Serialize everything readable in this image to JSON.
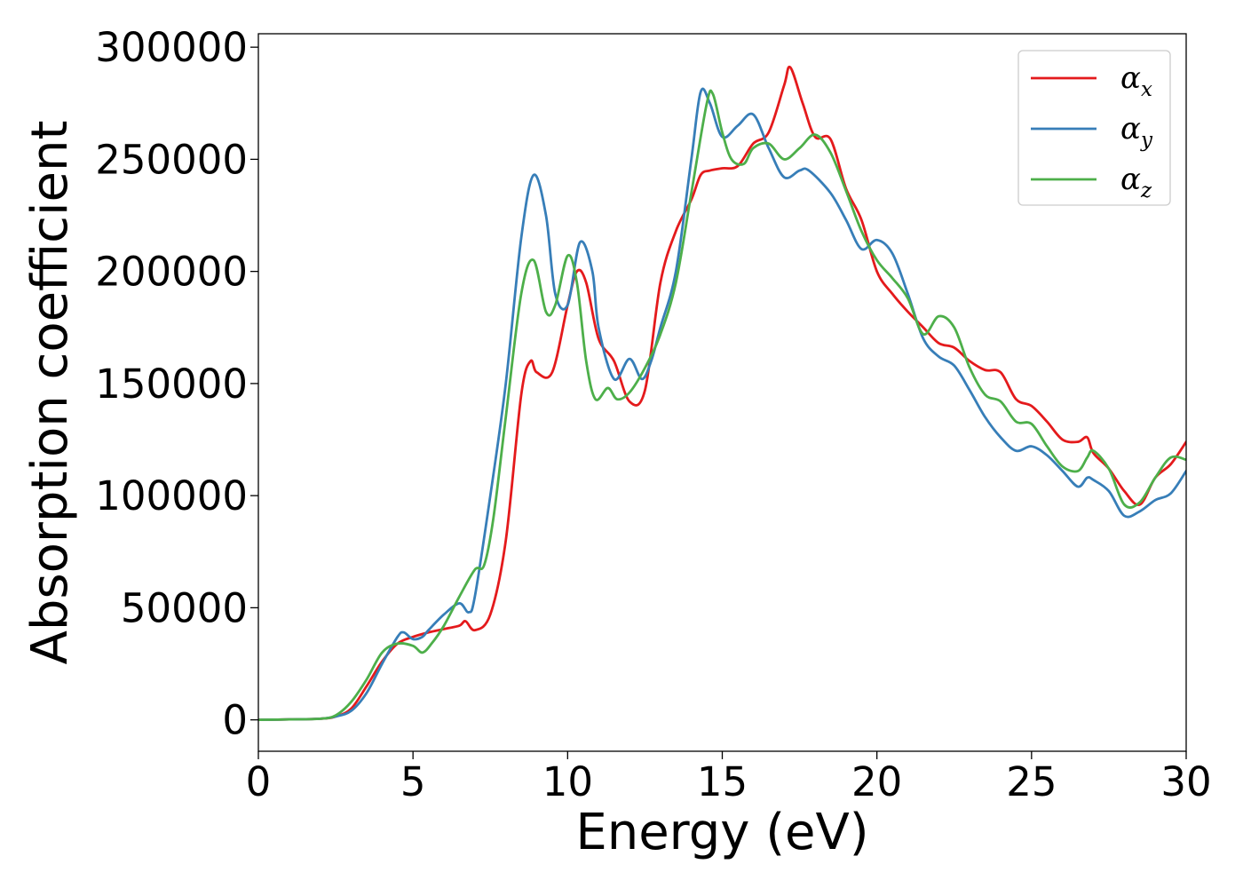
{
  "chart_data": {
    "type": "line",
    "title": "",
    "xlabel": "Energy (eV)",
    "ylabel": "Absorption coefficient",
    "xlim": [
      0,
      30
    ],
    "ylim": [
      -14000,
      306000
    ],
    "xticks": [
      0,
      5,
      10,
      15,
      20,
      25,
      30
    ],
    "yticks": [
      0,
      50000,
      100000,
      150000,
      200000,
      250000,
      300000
    ],
    "xtick_labels": [
      "0",
      "5",
      "10",
      "15",
      "20",
      "25",
      "30"
    ],
    "ytick_labels": [
      "0",
      "50000",
      "100000",
      "150000",
      "200000",
      "250000",
      "300000"
    ],
    "grid": false,
    "legend": {
      "position": "top-right"
    },
    "series": [
      {
        "name": "α_x",
        "symbol": "α",
        "subscript": "x",
        "color": "#e41a1c",
        "x": [
          0,
          1,
          2,
          2.5,
          3,
          3.5,
          4,
          4.5,
          5,
          5.5,
          6,
          6.5,
          6.7,
          7,
          7.5,
          8,
          8.5,
          8.8,
          9,
          9.5,
          10,
          10.3,
          10.6,
          11,
          11.5,
          12,
          12.5,
          13,
          13.5,
          14,
          14.3,
          14.6,
          15,
          15.5,
          16,
          16.5,
          17,
          17.2,
          17.6,
          18,
          18.5,
          19,
          19.5,
          20,
          20.5,
          21,
          21.5,
          22,
          22.5,
          23,
          23.5,
          24,
          24.5,
          25,
          25.5,
          26,
          26.5,
          26.8,
          27,
          27.5,
          28,
          28.5,
          29,
          29.5,
          30
        ],
        "y": [
          0,
          200,
          500,
          1500,
          5000,
          15000,
          26000,
          34000,
          37000,
          39000,
          40500,
          42000,
          44000,
          40000,
          47000,
          80000,
          145000,
          160000,
          155000,
          155000,
          185000,
          200000,
          195000,
          170000,
          160000,
          142000,
          147000,
          195000,
          218000,
          232000,
          243000,
          245000,
          246000,
          247000,
          257000,
          262000,
          283000,
          291000,
          275000,
          260000,
          259000,
          237000,
          223000,
          200000,
          190000,
          182000,
          175000,
          168000,
          166000,
          160000,
          156000,
          155000,
          143000,
          140000,
          133000,
          125000,
          124000,
          126000,
          119000,
          112000,
          102000,
          96000,
          108000,
          114000,
          124000
        ]
      },
      {
        "name": "α_y",
        "symbol": "α",
        "subscript": "y",
        "color": "#377eb8",
        "x": [
          0,
          1,
          2,
          2.5,
          3,
          3.5,
          4,
          4.5,
          4.7,
          5,
          5.3,
          5.5,
          6,
          6.5,
          6.8,
          7,
          7.5,
          8,
          8.5,
          8.9,
          9.3,
          9.6,
          10,
          10.4,
          10.8,
          11,
          11.5,
          12,
          12.4,
          12.7,
          13,
          13.5,
          14,
          14.3,
          14.6,
          15,
          15.5,
          16,
          16.5,
          17,
          17.5,
          17.8,
          18.5,
          19,
          19.5,
          20,
          20.5,
          21,
          21.5,
          22,
          22.5,
          23,
          23.5,
          24,
          24.5,
          25,
          25.5,
          26,
          26.5,
          26.8,
          27,
          27.5,
          28,
          28.5,
          29,
          29.5,
          30
        ],
        "y": [
          0,
          200,
          500,
          1500,
          4000,
          12000,
          25000,
          37000,
          39000,
          36000,
          37000,
          40000,
          47000,
          52000,
          48000,
          55000,
          100000,
          150000,
          215000,
          243000,
          225000,
          190000,
          185000,
          213000,
          200000,
          175000,
          152000,
          161000,
          152000,
          160000,
          175000,
          200000,
          250000,
          280000,
          275000,
          260000,
          265000,
          270000,
          255000,
          242000,
          245000,
          245000,
          235000,
          223000,
          210000,
          214000,
          208000,
          190000,
          170000,
          162000,
          158000,
          147000,
          135000,
          126000,
          120000,
          122000,
          118000,
          111000,
          104000,
          108000,
          107000,
          102000,
          91000,
          93000,
          98000,
          101000,
          111000
        ]
      },
      {
        "name": "α_z",
        "symbol": "α",
        "subscript": "z",
        "color": "#4daf4a",
        "x": [
          0,
          1,
          2,
          2.5,
          3,
          3.5,
          4,
          4.5,
          5,
          5.3,
          5.6,
          6,
          6.5,
          7,
          7.3,
          7.6,
          8,
          8.5,
          8.9,
          9.3,
          9.6,
          10,
          10.3,
          10.6,
          10.9,
          11.3,
          11.6,
          12,
          12.5,
          13,
          13.5,
          14,
          14.5,
          14.7,
          15,
          15.3,
          15.7,
          16,
          16.5,
          17,
          17.5,
          18,
          18.5,
          19,
          19.5,
          20,
          20.5,
          21,
          21.5,
          22,
          22.5,
          23,
          23.5,
          24,
          24.5,
          25,
          25.5,
          26,
          26.5,
          26.8,
          27,
          27.5,
          28,
          28.5,
          29,
          29.5,
          30
        ],
        "y": [
          0,
          200,
          500,
          2000,
          8000,
          18000,
          30000,
          34000,
          33000,
          30000,
          34000,
          42000,
          55000,
          67000,
          69000,
          90000,
          135000,
          190000,
          205000,
          182000,
          185000,
          207000,
          195000,
          160000,
          143000,
          148000,
          143000,
          146000,
          157000,
          172000,
          195000,
          235000,
          275000,
          279000,
          262000,
          250000,
          248000,
          255000,
          257000,
          250000,
          255000,
          261000,
          253000,
          236000,
          218000,
          205000,
          197000,
          188000,
          172000,
          180000,
          175000,
          157000,
          145000,
          142000,
          133000,
          132000,
          122000,
          113000,
          111000,
          117000,
          120000,
          112000,
          96000,
          97000,
          108000,
          117000,
          116000
        ]
      }
    ]
  }
}
